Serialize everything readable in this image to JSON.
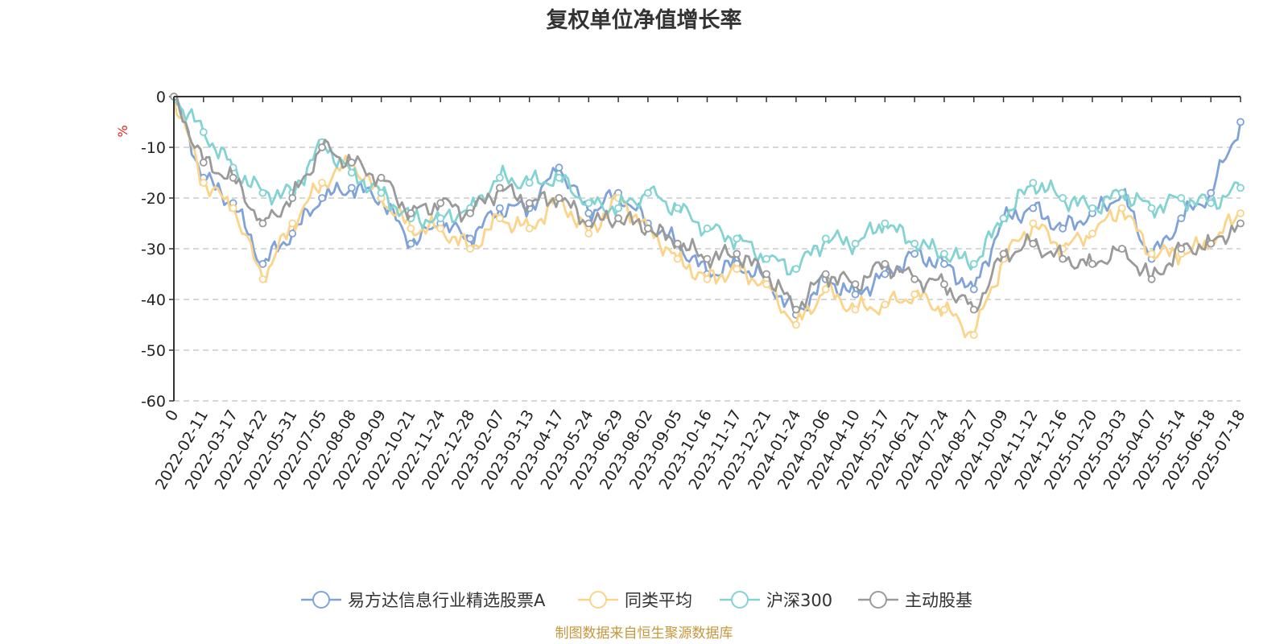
{
  "chart_data": {
    "type": "line",
    "title": "复权单位净值增长率",
    "ylabel": "%",
    "ylim": [
      -60,
      0
    ],
    "yticks": [
      0,
      -10,
      -20,
      -30,
      -40,
      -50,
      -60
    ],
    "grid": true,
    "legend_position": "bottom",
    "x_tick_labels": [
      "0",
      "2022-02-11",
      "2022-03-17",
      "2022-04-22",
      "2022-05-31",
      "2022-07-05",
      "2022-08-08",
      "2022-09-09",
      "2022-10-21",
      "2022-11-24",
      "2022-12-28",
      "2023-02-07",
      "2023-03-13",
      "2023-04-17",
      "2023-05-24",
      "2023-06-29",
      "2023-08-02",
      "2023-09-05",
      "2023-10-16",
      "2023-11-17",
      "2023-12-21",
      "2024-01-24",
      "2024-03-06",
      "2024-04-10",
      "2024-05-17",
      "2024-06-21",
      "2024-07-24",
      "2024-08-27",
      "2024-10-09",
      "2024-11-12",
      "2024-12-16",
      "2025-01-20",
      "2025-03-03",
      "2025-04-07",
      "2025-05-14",
      "2025-06-18",
      "2025-07-18"
    ],
    "x": [
      "0",
      "2022-02-11",
      "2022-03-17",
      "2022-04-22",
      "2022-05-31",
      "2022-07-05",
      "2022-08-08",
      "2022-09-09",
      "2022-10-21",
      "2022-11-24",
      "2022-12-28",
      "2023-02-07",
      "2023-03-13",
      "2023-04-17",
      "2023-05-24",
      "2023-06-29",
      "2023-08-02",
      "2023-09-05",
      "2023-10-16",
      "2023-11-17",
      "2023-12-21",
      "2024-01-24",
      "2024-03-06",
      "2024-04-10",
      "2024-05-17",
      "2024-06-21",
      "2024-07-24",
      "2024-08-27",
      "2024-10-09",
      "2024-11-12",
      "2024-12-16",
      "2025-01-20",
      "2025-03-03",
      "2025-04-07",
      "2025-05-14",
      "2025-06-18",
      "2025-07-18"
    ],
    "series": [
      {
        "name": "易方达信息行业精选股票A",
        "color": "#7fa3d8",
        "values": [
          0,
          -16,
          -21,
          -33,
          -27,
          -20,
          -18,
          -20,
          -29,
          -25,
          -28,
          -22,
          -22,
          -14,
          -23,
          -19,
          -25,
          -29,
          -35,
          -33,
          -36,
          -43,
          -36,
          -39,
          -35,
          -31,
          -33,
          -38,
          -24,
          -22,
          -26,
          -23,
          -19,
          -32,
          -24,
          -19,
          -5
        ]
      },
      {
        "name": "同类平均",
        "color": "#fbd48a",
        "values": [
          0,
          -17,
          -22,
          -36,
          -25,
          -17,
          -13,
          -20,
          -26,
          -26,
          -30,
          -24,
          -26,
          -20,
          -27,
          -20,
          -26,
          -32,
          -36,
          -34,
          -37,
          -45,
          -38,
          -42,
          -41,
          -39,
          -42,
          -47,
          -32,
          -25,
          -30,
          -27,
          -22,
          -31,
          -31,
          -29,
          -23
        ]
      },
      {
        "name": "沪深300",
        "color": "#83d3d3",
        "values": [
          0,
          -7,
          -14,
          -19,
          -19,
          -9,
          -15,
          -19,
          -24,
          -24,
          -22,
          -16,
          -17,
          -16,
          -21,
          -22,
          -19,
          -22,
          -26,
          -28,
          -32,
          -34,
          -28,
          -29,
          -25,
          -29,
          -31,
          -33,
          -24,
          -17,
          -20,
          -22,
          -19,
          -22,
          -20,
          -21,
          -18
        ]
      },
      {
        "name": "主动股基",
        "color": "#9a9a9a",
        "values": [
          0,
          -13,
          -16,
          -25,
          -20,
          -10,
          -13,
          -16,
          -23,
          -21,
          -23,
          -18,
          -21,
          -20,
          -25,
          -24,
          -26,
          -29,
          -32,
          -31,
          -35,
          -42,
          -35,
          -37,
          -33,
          -36,
          -37,
          -42,
          -31,
          -29,
          -32,
          -33,
          -30,
          -36,
          -30,
          -29,
          -25
        ]
      }
    ]
  },
  "footer": {
    "source": "制图数据来自恒生聚源数据库"
  }
}
